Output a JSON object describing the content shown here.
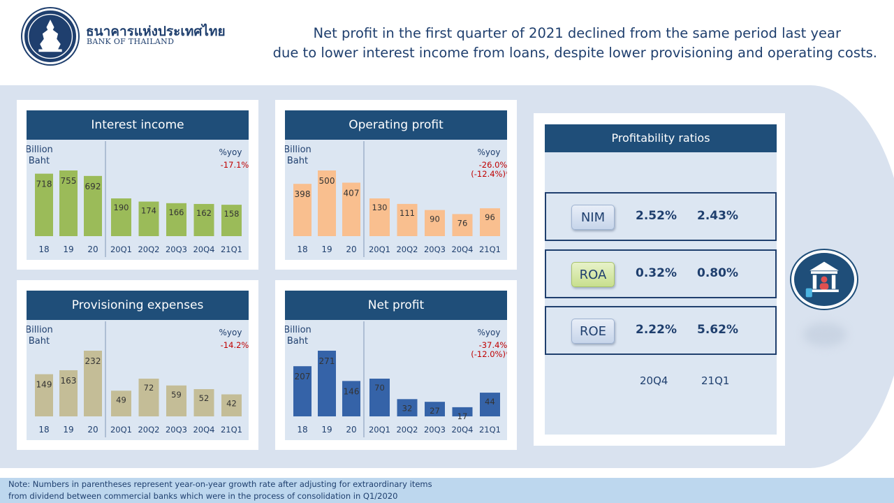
{
  "header": {
    "bank_name_th": "ธนาคารแห่งประเทศไทย",
    "bank_name_en": "BANK OF THAILAND",
    "headline_line1": "Net profit in the first quarter of 2021 declined from the same period last year",
    "headline_line2": "due to lower interest income from loans, despite lower provisioning and operating costs."
  },
  "colors": {
    "navy": "#1f4e79",
    "green_bar": "#9bbb59",
    "orange_bar": "#f9bf8f",
    "tan_bar": "#c4bd97",
    "blue_bar": "#3563a8",
    "yoy_red": "#c00000"
  },
  "chart_data": [
    {
      "type": "bar",
      "title": "Interest income",
      "unit_label_1": "Billion",
      "unit_label_2": "Baht",
      "annual": {
        "categories": [
          "18",
          "19",
          "20"
        ],
        "values": [
          718,
          755,
          692
        ]
      },
      "quarterly": {
        "categories": [
          "20Q1",
          "20Q2",
          "20Q3",
          "20Q4",
          "21Q1"
        ],
        "values": [
          190,
          174,
          166,
          162,
          158
        ]
      },
      "yoy_label": "%yoy",
      "yoy_values": [
        "-17.1%"
      ],
      "color": "#9bbb59"
    },
    {
      "type": "bar",
      "title": "Operating profit",
      "unit_label_1": "Billion",
      "unit_label_2": "Baht",
      "annual": {
        "categories": [
          "18",
          "19",
          "20"
        ],
        "values": [
          398,
          500,
          407
        ]
      },
      "quarterly": {
        "categories": [
          "20Q1",
          "20Q2",
          "20Q3",
          "20Q4",
          "21Q1"
        ],
        "values": [
          130,
          111,
          90,
          76,
          96
        ]
      },
      "yoy_label": "%yoy",
      "yoy_values": [
        "-26.0%",
        "(-12.4%)*"
      ],
      "color": "#f9bf8f"
    },
    {
      "type": "bar",
      "title": "Provisioning expenses",
      "unit_label_1": "Billion",
      "unit_label_2": "Baht",
      "annual": {
        "categories": [
          "18",
          "19",
          "20"
        ],
        "values": [
          149,
          163,
          232
        ]
      },
      "quarterly": {
        "categories": [
          "20Q1",
          "20Q2",
          "20Q3",
          "20Q4",
          "21Q1"
        ],
        "values": [
          49,
          72,
          59,
          52,
          42
        ]
      },
      "yoy_label": "%yoy",
      "yoy_values": [
        "-14.2%"
      ],
      "color": "#c4bd97"
    },
    {
      "type": "bar",
      "title": "Net profit",
      "unit_label_1": "Billion",
      "unit_label_2": "Baht",
      "annual": {
        "categories": [
          "18",
          "19",
          "20"
        ],
        "values": [
          207,
          271,
          146
        ]
      },
      "quarterly": {
        "categories": [
          "20Q1",
          "20Q2",
          "20Q3",
          "20Q4",
          "21Q1"
        ],
        "values": [
          70,
          32,
          27,
          17,
          44
        ]
      },
      "yoy_label": "%yoy",
      "yoy_values": [
        "-37.4%",
        "(-12.0%)*"
      ],
      "color": "#3563a8"
    }
  ],
  "profitability": {
    "title": "Profitability ratios",
    "rows": [
      {
        "label": "NIM",
        "v_20Q4": "2.52%",
        "v_21Q1": "2.43%"
      },
      {
        "label": "ROA",
        "v_20Q4": "0.32%",
        "v_21Q1": "0.80%"
      },
      {
        "label": "ROE",
        "v_20Q4": "2.22%",
        "v_21Q1": "5.62%"
      }
    ],
    "period_1": "20Q4",
    "period_2": "21Q1"
  },
  "footer": {
    "line1": "Note: Numbers in parentheses represent year-on-year growth rate after adjusting  for extraordinary items",
    "line2": "from dividend  between commercial banks which were in the process of consolidation  in Q1/2020"
  }
}
